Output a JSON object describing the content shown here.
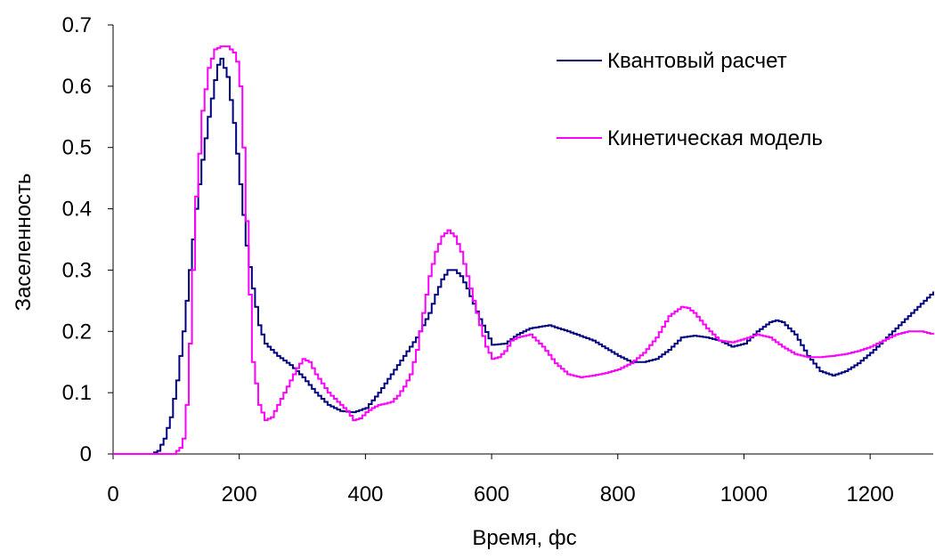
{
  "chart_data": {
    "type": "line",
    "title": "",
    "xlabel": "Время, фс",
    "ylabel": "Заселенность",
    "xlim": [
      0,
      1300
    ],
    "ylim": [
      0,
      0.7
    ],
    "xticks": [
      0,
      200,
      400,
      600,
      800,
      1000,
      1200
    ],
    "yticks": [
      0,
      0.1,
      0.2,
      0.3,
      0.4,
      0.5,
      0.6,
      0.7
    ],
    "xtick_labels": [
      "0",
      "200",
      "400",
      "600",
      "800",
      "1000",
      "1200"
    ],
    "ytick_labels": [
      "0",
      "0.1",
      "0.2",
      "0.3",
      "0.4",
      "0.5",
      "0.6",
      "0.7"
    ],
    "grid": false,
    "legend_position": "top-right",
    "series": [
      {
        "name": "Квантовый расчет",
        "color": "#000080",
        "x": [
          0,
          60,
          70,
          80,
          90,
          100,
          110,
          120,
          130,
          140,
          150,
          160,
          165,
          170,
          180,
          190,
          200,
          210,
          220,
          230,
          240,
          260,
          280,
          300,
          320,
          340,
          360,
          380,
          400,
          420,
          440,
          460,
          480,
          500,
          510,
          520,
          530,
          540,
          550,
          560,
          580,
          600,
          620,
          640,
          660,
          690,
          720,
          760,
          800,
          820,
          840,
          860,
          880,
          900,
          920,
          940,
          960,
          980,
          1000,
          1020,
          1040,
          1050,
          1060,
          1080,
          1100,
          1120,
          1140,
          1160,
          1180,
          1200,
          1220,
          1240,
          1260,
          1280,
          1300
        ],
        "y": [
          0,
          0,
          0.005,
          0.025,
          0.06,
          0.12,
          0.2,
          0.3,
          0.4,
          0.48,
          0.55,
          0.61,
          0.635,
          0.645,
          0.615,
          0.54,
          0.44,
          0.34,
          0.27,
          0.21,
          0.18,
          0.16,
          0.145,
          0.125,
          0.1,
          0.08,
          0.07,
          0.068,
          0.075,
          0.1,
          0.13,
          0.16,
          0.19,
          0.23,
          0.26,
          0.285,
          0.3,
          0.3,
          0.29,
          0.27,
          0.22,
          0.178,
          0.18,
          0.195,
          0.205,
          0.21,
          0.2,
          0.185,
          0.16,
          0.15,
          0.15,
          0.155,
          0.17,
          0.19,
          0.193,
          0.19,
          0.185,
          0.175,
          0.18,
          0.2,
          0.215,
          0.218,
          0.215,
          0.195,
          0.16,
          0.135,
          0.128,
          0.135,
          0.148,
          0.165,
          0.185,
          0.205,
          0.225,
          0.245,
          0.265
        ]
      },
      {
        "name": "Кинетическая модель",
        "color": "#ff00ff",
        "x": [
          0,
          95,
          100,
          105,
          110,
          115,
          120,
          125,
          130,
          140,
          150,
          160,
          170,
          180,
          190,
          195,
          200,
          205,
          210,
          215,
          220,
          230,
          240,
          250,
          260,
          270,
          280,
          290,
          300,
          310,
          320,
          330,
          340,
          350,
          360,
          370,
          380,
          390,
          400,
          410,
          420,
          430,
          440,
          450,
          460,
          470,
          480,
          490,
          500,
          510,
          520,
          530,
          540,
          550,
          560,
          570,
          580,
          590,
          600,
          610,
          620,
          630,
          640,
          660,
          680,
          700,
          720,
          740,
          760,
          780,
          800,
          820,
          840,
          860,
          880,
          900,
          910,
          920,
          940,
          960,
          980,
          1000,
          1020,
          1040,
          1060,
          1080,
          1100,
          1120,
          1140,
          1160,
          1180,
          1200,
          1220,
          1240,
          1260,
          1280,
          1300
        ],
        "y": [
          0,
          0,
          0.005,
          0.01,
          0.025,
          0.08,
          0.18,
          0.3,
          0.42,
          0.56,
          0.63,
          0.66,
          0.665,
          0.665,
          0.655,
          0.64,
          0.6,
          0.5,
          0.38,
          0.26,
          0.15,
          0.08,
          0.055,
          0.06,
          0.08,
          0.1,
          0.12,
          0.14,
          0.155,
          0.15,
          0.13,
          0.115,
          0.1,
          0.09,
          0.08,
          0.07,
          0.055,
          0.058,
          0.068,
          0.075,
          0.08,
          0.082,
          0.085,
          0.095,
          0.11,
          0.13,
          0.17,
          0.23,
          0.29,
          0.33,
          0.355,
          0.365,
          0.355,
          0.33,
          0.29,
          0.25,
          0.21,
          0.175,
          0.155,
          0.158,
          0.168,
          0.185,
          0.19,
          0.195,
          0.175,
          0.148,
          0.13,
          0.125,
          0.128,
          0.132,
          0.138,
          0.148,
          0.165,
          0.19,
          0.225,
          0.24,
          0.238,
          0.23,
          0.205,
          0.185,
          0.182,
          0.188,
          0.195,
          0.19,
          0.175,
          0.163,
          0.158,
          0.158,
          0.16,
          0.163,
          0.168,
          0.175,
          0.185,
          0.195,
          0.2,
          0.2,
          0.195
        ]
      }
    ]
  }
}
